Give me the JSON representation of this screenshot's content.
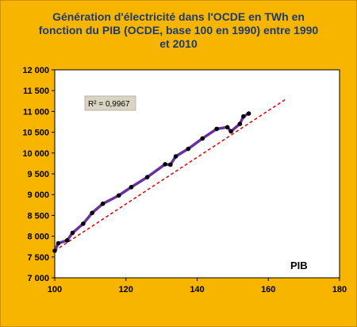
{
  "chart_data": {
    "type": "scatter",
    "title_lines": [
      "Génération d'électricité  dans l'OCDE en TWh en",
      "fonction du PIB (OCDE, base 100 en 1990) entre 1990",
      "et 2010"
    ],
    "xlabel": "PIB",
    "ylabel": "",
    "xlim": [
      100,
      180
    ],
    "ylim": [
      7000,
      12000
    ],
    "x_ticks": [
      100,
      120,
      140,
      160,
      180
    ],
    "x_tick_labels": [
      "100",
      "120",
      "140",
      "160",
      "180"
    ],
    "y_ticks": [
      7000,
      7500,
      8000,
      8500,
      9000,
      9500,
      10000,
      10500,
      11000,
      11500,
      12000
    ],
    "y_tick_labels": [
      "7 000",
      "7 500",
      "8 000",
      "8 500",
      "9 000",
      "9 500",
      "10 000",
      "10 500",
      "11 000",
      "11 500",
      "12 000"
    ],
    "grid": false,
    "annotation": "R² = 0,9967",
    "series": [
      {
        "x": [
          100,
          101,
          103.5,
          105,
          108,
          110.5,
          113.5,
          118,
          121.5,
          126,
          131,
          132.5,
          134,
          137.5,
          141.5,
          145.5,
          148.5,
          149.5,
          152,
          153,
          154.5
        ],
        "y": [
          7650,
          7830,
          7900,
          8080,
          8300,
          8560,
          8780,
          8980,
          9180,
          9420,
          9730,
          9720,
          9920,
          10100,
          10350,
          10580,
          10620,
          10520,
          10700,
          10880,
          10950
        ],
        "line_color": "#6a2fa0",
        "marker_color": "#000000"
      },
      {
        "x": [
          100,
          165
        ],
        "y": [
          7650,
          11300
        ],
        "line_color": "#e00000",
        "line_style": "dashed"
      }
    ],
    "colors": {
      "frame_background": "#f7b500",
      "plot_background": "#ffffff",
      "title": "#1f3b73",
      "annotation_box": "#d9d4c4"
    }
  }
}
